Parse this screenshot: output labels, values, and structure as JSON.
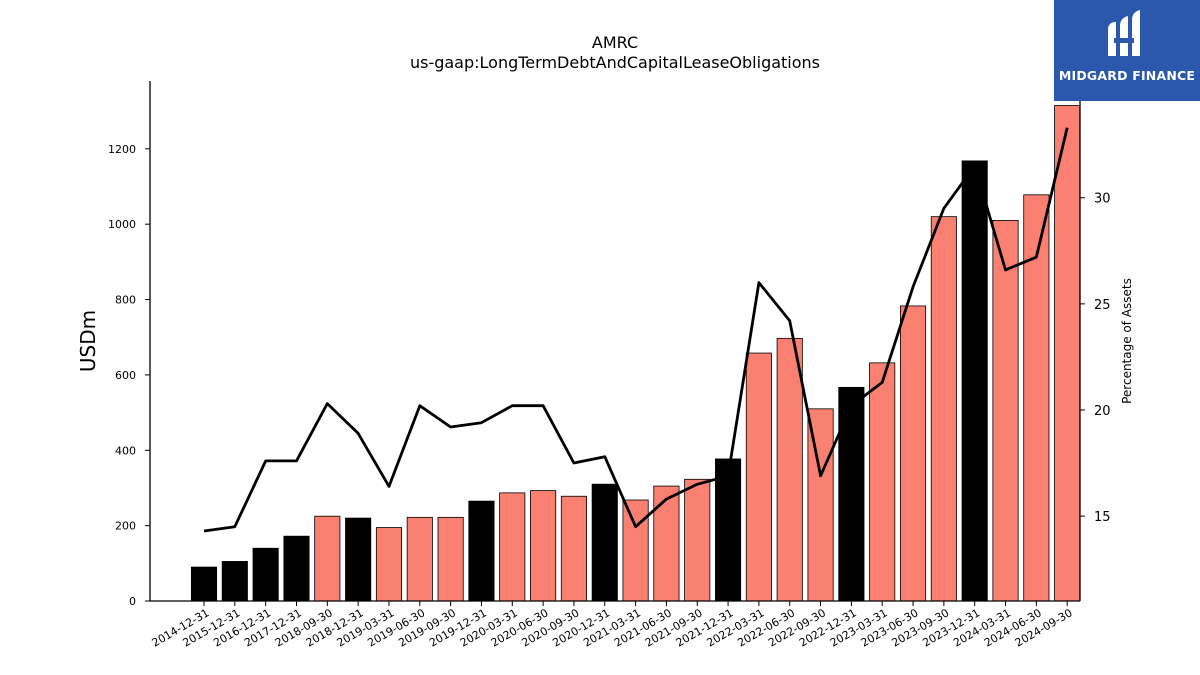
{
  "logo": {
    "text": "MIDGARD FINANCE"
  },
  "chart_data": {
    "type": "bar",
    "title": "AMRC",
    "subtitle": "us-gaap:LongTermDebtAndCapitalLeaseObligations",
    "ylabel": "USDm",
    "y2label": "Percentage of Assets",
    "ylim": [
      0,
      1380
    ],
    "y2lim": [
      11.0,
      35.5
    ],
    "yticks": [
      0,
      200,
      400,
      600,
      800,
      1000,
      1200
    ],
    "y2ticks": [
      15,
      20,
      25,
      30
    ],
    "categories": [
      "2014-12-31",
      "2015-12-31",
      "2016-12-31",
      "2017-12-31",
      "2018-09-30",
      "2018-12-31",
      "2019-03-31",
      "2019-06-30",
      "2019-09-30",
      "2019-12-31",
      "2020-03-31",
      "2020-06-30",
      "2020-09-30",
      "2020-12-31",
      "2021-03-31",
      "2021-06-30",
      "2021-09-30",
      "2021-12-31",
      "2022-03-31",
      "2022-06-30",
      "2022-09-30",
      "2022-12-31",
      "2023-03-31",
      "2023-06-30",
      "2023-09-30",
      "2023-12-31",
      "2024-03-31",
      "2024-06-30",
      "2024-09-30"
    ],
    "series": [
      {
        "kind": "bar",
        "values": [
          90,
          105,
          140,
          172,
          225,
          220,
          195,
          222,
          222,
          265,
          287,
          293,
          278,
          310,
          268,
          305,
          323,
          377,
          658,
          697,
          510,
          567,
          632,
          783,
          1020,
          1168,
          1010,
          1078,
          1315
        ],
        "colors": [
          "#000000",
          "#000000",
          "#000000",
          "#000000",
          "#fa8072",
          "#000000",
          "#fa8072",
          "#fa8072",
          "#fa8072",
          "#000000",
          "#fa8072",
          "#fa8072",
          "#fa8072",
          "#000000",
          "#fa8072",
          "#fa8072",
          "#fa8072",
          "#000000",
          "#fa8072",
          "#fa8072",
          "#fa8072",
          "#000000",
          "#fa8072",
          "#fa8072",
          "#fa8072",
          "#000000",
          "#fa8072",
          "#fa8072",
          "#fa8072"
        ]
      },
      {
        "kind": "line",
        "axis": "right",
        "color": "#000000",
        "values": [
          14.3,
          14.5,
          17.6,
          17.6,
          20.3,
          18.9,
          16.4,
          20.2,
          19.2,
          19.4,
          20.2,
          20.2,
          17.5,
          17.8,
          14.5,
          15.8,
          16.5,
          16.9,
          26.0,
          24.2,
          16.9,
          20.2,
          21.3,
          25.8,
          29.5,
          31.5,
          26.6,
          27.2,
          33.3
        ]
      }
    ]
  }
}
